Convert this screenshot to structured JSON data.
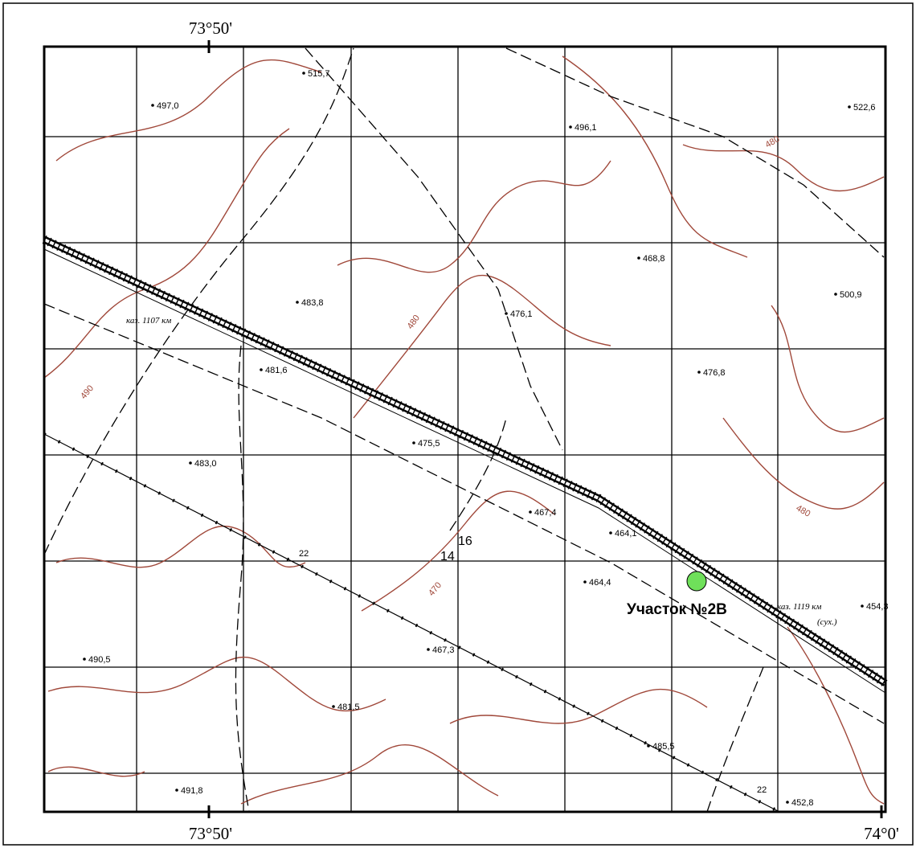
{
  "map": {
    "coordinates": {
      "top_left": "73°50'",
      "bottom_left": "73°50'",
      "bottom_right": "74°0'"
    },
    "site_label": "Участок №2В",
    "elevations": [
      "515,7",
      "497,0",
      "496,1",
      "522,6",
      "468,8",
      "483,8",
      "476,1",
      "500,9",
      "481,6",
      "476,8",
      "475,5",
      "483,0",
      "467,4",
      "464,1",
      "464,4",
      "454,3",
      "490,5",
      "467,3",
      "481,5",
      "485,5",
      "491,8",
      "452,8"
    ],
    "contour_labels": [
      "480",
      "490",
      "470",
      "480",
      "480"
    ],
    "rail_labels": [
      "каз. 1107 км",
      "каз. 1119 км",
      "(сух.)"
    ],
    "grid_numbers": [
      "14",
      "16",
      "22",
      "22"
    ]
  }
}
